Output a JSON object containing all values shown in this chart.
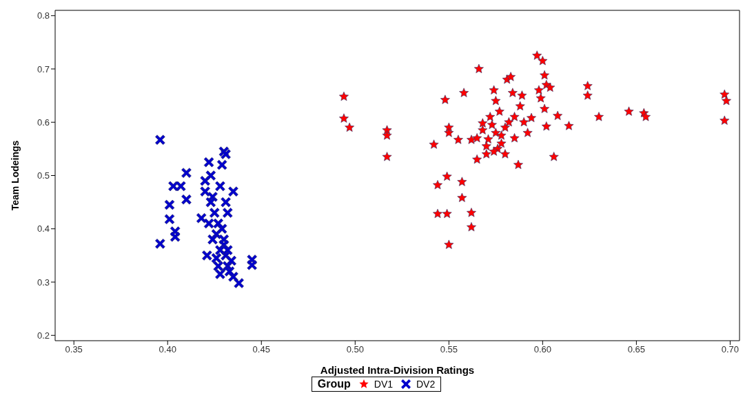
{
  "chart_data": {
    "type": "scatter",
    "xlabel": "Adjusted Intra-Division Ratings",
    "ylabel": "Team Lodeings",
    "legend_title": "Group",
    "legend": "bottom",
    "grid": false,
    "xlim": [
      0.34,
      0.705
    ],
    "xticks": [
      {
        "value": 0.35,
        "label": "0.35"
      },
      {
        "value": 0.4,
        "label": "0.40"
      },
      {
        "value": 0.45,
        "label": "0.45"
      },
      {
        "value": 0.5,
        "label": "0.50"
      },
      {
        "value": 0.55,
        "label": "0.55"
      },
      {
        "value": 0.6,
        "label": "0.60"
      },
      {
        "value": 0.65,
        "label": "0.65"
      },
      {
        "value": 0.7,
        "label": "0.70"
      }
    ],
    "ylim": [
      0.19,
      0.81
    ],
    "yticks": [
      0.2,
      0.3,
      0.4,
      0.5,
      0.6,
      0.7,
      0.8
    ],
    "series": [
      {
        "name": "DV1",
        "color": "#ff0000",
        "marker": "star",
        "x": [
          0.494,
          0.494,
          0.497,
          0.517,
          0.517,
          0.517,
          0.542,
          0.544,
          0.544,
          0.548,
          0.549,
          0.549,
          0.55,
          0.55,
          0.55,
          0.555,
          0.557,
          0.557,
          0.558,
          0.562,
          0.562,
          0.562,
          0.565,
          0.566,
          0.568,
          0.57,
          0.571,
          0.572,
          0.574,
          0.575,
          0.575,
          0.576,
          0.577,
          0.578,
          0.58,
          0.581,
          0.583,
          0.584,
          0.585,
          0.585,
          0.587,
          0.588,
          0.589,
          0.59,
          0.592,
          0.594,
          0.597,
          0.598,
          0.599,
          0.6,
          0.601,
          0.601,
          0.602,
          0.602,
          0.604,
          0.606,
          0.608,
          0.614,
          0.624,
          0.624,
          0.63,
          0.646,
          0.654,
          0.655,
          0.697,
          0.698,
          0.697,
          0.565,
          0.568,
          0.573,
          0.574,
          0.578,
          0.582,
          0.57,
          0.58
        ],
        "values": [
          0.648,
          0.607,
          0.59,
          0.585,
          0.575,
          0.535,
          0.558,
          0.482,
          0.428,
          0.642,
          0.428,
          0.498,
          0.37,
          0.59,
          0.58,
          0.567,
          0.488,
          0.458,
          0.655,
          0.43,
          0.403,
          0.567,
          0.53,
          0.7,
          0.598,
          0.54,
          0.568,
          0.61,
          0.66,
          0.64,
          0.58,
          0.55,
          0.62,
          0.56,
          0.59,
          0.68,
          0.685,
          0.655,
          0.61,
          0.57,
          0.52,
          0.63,
          0.65,
          0.6,
          0.58,
          0.608,
          0.725,
          0.66,
          0.645,
          0.715,
          0.688,
          0.625,
          0.67,
          0.592,
          0.665,
          0.535,
          0.612,
          0.593,
          0.668,
          0.65,
          0.61,
          0.62,
          0.617,
          0.61,
          0.652,
          0.64,
          0.603,
          0.57,
          0.585,
          0.595,
          0.545,
          0.575,
          0.6,
          0.555,
          0.54
        ]
      },
      {
        "name": "DV2",
        "color": "#0000cc",
        "marker": "cross",
        "x": [
          0.396,
          0.396,
          0.401,
          0.401,
          0.403,
          0.404,
          0.404,
          0.407,
          0.41,
          0.41,
          0.418,
          0.42,
          0.42,
          0.421,
          0.422,
          0.423,
          0.424,
          0.426,
          0.427,
          0.428,
          0.428,
          0.429,
          0.43,
          0.431,
          0.431,
          0.432,
          0.43,
          0.431,
          0.432,
          0.434,
          0.435,
          0.435,
          0.438,
          0.445,
          0.445,
          0.422,
          0.424,
          0.426,
          0.429,
          0.43,
          0.433,
          0.428,
          0.425,
          0.427,
          0.423,
          0.432
        ],
        "values": [
          0.567,
          0.372,
          0.445,
          0.418,
          0.48,
          0.395,
          0.385,
          0.48,
          0.505,
          0.455,
          0.42,
          0.49,
          0.47,
          0.35,
          0.525,
          0.5,
          0.46,
          0.39,
          0.33,
          0.315,
          0.48,
          0.52,
          0.545,
          0.54,
          0.45,
          0.43,
          0.38,
          0.35,
          0.33,
          0.34,
          0.31,
          0.47,
          0.298,
          0.342,
          0.332,
          0.41,
          0.38,
          0.345,
          0.4,
          0.37,
          0.32,
          0.36,
          0.43,
          0.41,
          0.45,
          0.36
        ]
      }
    ]
  }
}
